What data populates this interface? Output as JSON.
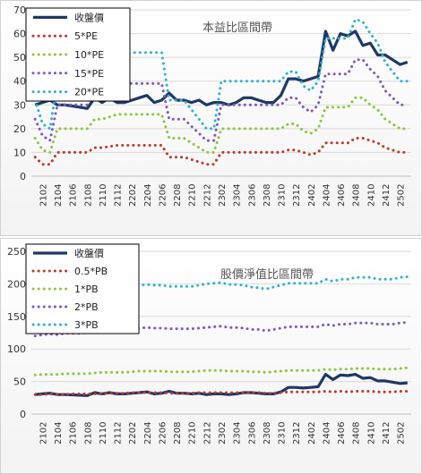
{
  "chart_data": [
    {
      "type": "line",
      "title": "本益比區間帶",
      "ylim": [
        0,
        70
      ],
      "yticks": [
        0,
        10,
        20,
        30,
        40,
        50,
        60,
        70
      ],
      "x": [
        "2101",
        "2102",
        "2103",
        "2104",
        "2105",
        "2106",
        "2107",
        "2108",
        "2109",
        "2110",
        "2111",
        "2112",
        "2201",
        "2202",
        "2203",
        "2204",
        "2205",
        "2206",
        "2207",
        "2208",
        "2209",
        "2210",
        "2211",
        "2212",
        "2301",
        "2302",
        "2303",
        "2304",
        "2305",
        "2306",
        "2307",
        "2308",
        "2309",
        "2310",
        "2311",
        "2312",
        "2401",
        "2402",
        "2403",
        "2404",
        "2405",
        "2406",
        "2407",
        "2408",
        "2409",
        "2410",
        "2411",
        "2412",
        "2501",
        "2502",
        "2503"
      ],
      "xtick_labels": [
        "2102",
        "2104",
        "2106",
        "2108",
        "2110",
        "2112",
        "2202",
        "2204",
        "2206",
        "2208",
        "2210",
        "2212",
        "2302",
        "2304",
        "2306",
        "2308",
        "2310",
        "2312",
        "2402",
        "2404",
        "2406",
        "2408",
        "2410",
        "2412",
        "2502"
      ],
      "legend_position": "top-left",
      "series": [
        {
          "name": "收盤價",
          "color": "#1f3864",
          "style": "solid",
          "values": [
            30,
            31,
            32,
            30,
            30,
            29.5,
            29,
            28.5,
            33,
            31,
            33,
            31,
            31,
            32,
            33,
            34,
            31,
            32,
            35,
            32,
            32,
            31,
            32,
            30,
            31,
            31,
            30,
            31,
            33,
            33,
            32,
            31,
            31,
            34,
            41,
            41,
            40,
            41,
            42,
            61,
            53,
            60,
            59,
            61,
            55,
            56,
            51,
            51,
            49,
            47,
            48
          ]
        },
        {
          "name": "5*PE",
          "color": "#c0392b",
          "style": "dot",
          "values": [
            8,
            5,
            5,
            10,
            10,
            10,
            10,
            10,
            12,
            12,
            12.5,
            13,
            13,
            13,
            13,
            13,
            13,
            13,
            8,
            8,
            8,
            7,
            6,
            5,
            5,
            10,
            10,
            10,
            10,
            10,
            10,
            10,
            10,
            10,
            11,
            11,
            10,
            9,
            10,
            14,
            14,
            14,
            14,
            16,
            16,
            15,
            14,
            12,
            11,
            10,
            10
          ]
        },
        {
          "name": "10*PE",
          "color": "#8dc63f",
          "style": "dot",
          "values": [
            16,
            11,
            10,
            20,
            20,
            20,
            20,
            20,
            24,
            24,
            25,
            26,
            26,
            26,
            26,
            26,
            26,
            26,
            16,
            16,
            16,
            14,
            12,
            10,
            10,
            20,
            20,
            20,
            20,
            20,
            20,
            20,
            20,
            20,
            22,
            22,
            19,
            18,
            20,
            29,
            29,
            29,
            29,
            33,
            33,
            30,
            28,
            24,
            22,
            20,
            20
          ]
        },
        {
          "name": "15*PE",
          "color": "#7e57c2",
          "style": "dot",
          "values": [
            24,
            17,
            15,
            30,
            30,
            30,
            30,
            30,
            36,
            36,
            38,
            39,
            39,
            39,
            39,
            39,
            39,
            39,
            24,
            24,
            24,
            21,
            18,
            15,
            15,
            30,
            30,
            30,
            30,
            30,
            30,
            30,
            30,
            30,
            33,
            33,
            29,
            27,
            30,
            43,
            43,
            43,
            43,
            49,
            49,
            45,
            42,
            36,
            33,
            30,
            30
          ]
        },
        {
          "name": "20*PE",
          "color": "#31b0d5",
          "style": "dot",
          "values": [
            32,
            22,
            20,
            40,
            40,
            40,
            40,
            40,
            48,
            48,
            50,
            52,
            52,
            52,
            52,
            52,
            52,
            52,
            32,
            32,
            32,
            28,
            24,
            20,
            20,
            40,
            40,
            40,
            40,
            40,
            40,
            40,
            40,
            40,
            44,
            44,
            38,
            36,
            40,
            58,
            58,
            58,
            58,
            66,
            65,
            60,
            56,
            48,
            44,
            40,
            40
          ]
        }
      ]
    },
    {
      "type": "line",
      "title": "股價淨值比區間帶",
      "ylim": [
        0,
        250
      ],
      "yticks": [
        0,
        50,
        100,
        150,
        200,
        250
      ],
      "x": [
        "2101",
        "2102",
        "2103",
        "2104",
        "2105",
        "2106",
        "2107",
        "2108",
        "2109",
        "2110",
        "2111",
        "2112",
        "2201",
        "2202",
        "2203",
        "2204",
        "2205",
        "2206",
        "2207",
        "2208",
        "2209",
        "2210",
        "2211",
        "2212",
        "2301",
        "2302",
        "2303",
        "2304",
        "2305",
        "2306",
        "2307",
        "2308",
        "2309",
        "2310",
        "2311",
        "2312",
        "2401",
        "2402",
        "2403",
        "2404",
        "2405",
        "2406",
        "2407",
        "2408",
        "2409",
        "2410",
        "2411",
        "2412",
        "2501",
        "2502",
        "2503"
      ],
      "xtick_labels": [
        "2102",
        "2104",
        "2106",
        "2108",
        "2110",
        "2112",
        "2202",
        "2204",
        "2206",
        "2208",
        "2210",
        "2212",
        "2302",
        "2304",
        "2306",
        "2308",
        "2310",
        "2312",
        "2402",
        "2404",
        "2406",
        "2408",
        "2410",
        "2412",
        "2502"
      ],
      "legend_position": "top-left",
      "series": [
        {
          "name": "收盤價",
          "color": "#1f3864",
          "style": "solid",
          "values": [
            30,
            31,
            32,
            30,
            30,
            29.5,
            29,
            28.5,
            33,
            31,
            33,
            31,
            31,
            32,
            33,
            34,
            31,
            32,
            35,
            32,
            32,
            31,
            32,
            30,
            31,
            31,
            30,
            31,
            33,
            33,
            32,
            31,
            31,
            34,
            41,
            41,
            40,
            41,
            42,
            61,
            53,
            60,
            59,
            61,
            55,
            56,
            51,
            51,
            49,
            47,
            48
          ]
        },
        {
          "name": "0.5*PB",
          "color": "#c0392b",
          "style": "dot",
          "values": [
            30,
            30,
            31,
            30,
            30,
            31,
            31,
            31,
            31,
            32,
            32,
            32,
            32,
            33,
            33,
            33,
            33,
            33,
            32,
            32,
            32,
            32,
            33,
            33,
            33,
            33,
            33,
            33,
            33,
            33,
            33,
            32,
            32,
            33,
            34,
            34,
            34,
            34,
            34,
            35,
            34,
            35,
            34,
            35,
            35,
            35,
            34,
            34,
            34,
            35,
            35
          ]
        },
        {
          "name": "1*PB",
          "color": "#8dc63f",
          "style": "dot",
          "values": [
            60,
            61,
            61,
            61,
            62,
            62,
            62,
            62,
            63,
            64,
            64,
            64,
            64,
            65,
            66,
            66,
            66,
            66,
            65,
            65,
            65,
            65,
            66,
            67,
            67,
            67,
            66,
            66,
            66,
            65,
            65,
            64,
            65,
            66,
            67,
            67,
            67,
            67,
            67,
            69,
            68,
            69,
            69,
            70,
            70,
            70,
            69,
            69,
            69,
            70,
            71
          ]
        },
        {
          "name": "2*PB",
          "color": "#7e57c2",
          "style": "dot",
          "values": [
            120,
            122,
            123,
            122,
            124,
            124,
            124,
            125,
            126,
            127,
            128,
            128,
            129,
            130,
            132,
            133,
            132,
            132,
            131,
            131,
            131,
            131,
            132,
            133,
            134,
            135,
            133,
            133,
            132,
            130,
            130,
            128,
            130,
            132,
            134,
            134,
            134,
            134,
            134,
            138,
            136,
            138,
            138,
            140,
            140,
            140,
            138,
            138,
            138,
            140,
            141
          ]
        },
        {
          "name": "3*PB",
          "color": "#31b0d5",
          "style": "dot",
          "values": [
            180,
            183,
            185,
            184,
            186,
            186,
            186,
            187,
            189,
            191,
            192,
            192,
            194,
            195,
            198,
            199,
            198,
            198,
            196,
            196,
            196,
            196,
            198,
            200,
            201,
            202,
            199,
            199,
            198,
            195,
            194,
            192,
            195,
            198,
            201,
            201,
            201,
            201,
            201,
            207,
            204,
            207,
            207,
            210,
            210,
            210,
            207,
            207,
            207,
            210,
            211
          ]
        }
      ]
    }
  ]
}
